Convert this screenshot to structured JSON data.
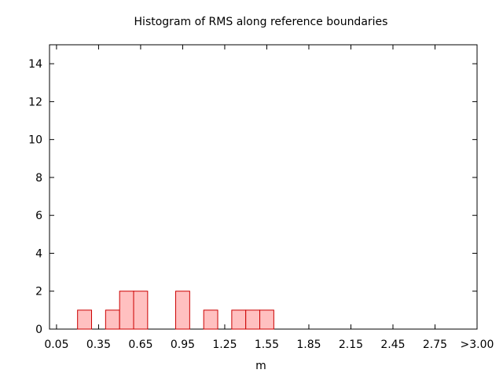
{
  "chart_data": {
    "type": "bar",
    "title": "Histogram of RMS along reference boundaries",
    "xlabel": "m",
    "ylabel": "",
    "x_tick_labels": [
      "0.05",
      "0.35",
      "0.65",
      "0.95",
      "1.25",
      "1.55",
      "1.85",
      "2.15",
      "2.45",
      "2.75",
      ">3.00"
    ],
    "y_tick_labels": [
      "0",
      "2",
      "4",
      "6",
      "8",
      "10",
      "12",
      "14"
    ],
    "xlim": [
      0.0,
      3.05
    ],
    "ylim": [
      0,
      15
    ],
    "bin_width": 0.1,
    "bin_centers": [
      0.25,
      0.45,
      0.55,
      0.65,
      0.95,
      1.15,
      1.35,
      1.45,
      1.55
    ],
    "values": [
      1,
      1,
      2,
      2,
      2,
      1,
      1,
      1,
      1
    ],
    "grid": false,
    "legend": "none",
    "colors": {
      "bar_fill": "#ffc0c0",
      "bar_stroke": "#cc0000",
      "axis": "#000000"
    }
  }
}
